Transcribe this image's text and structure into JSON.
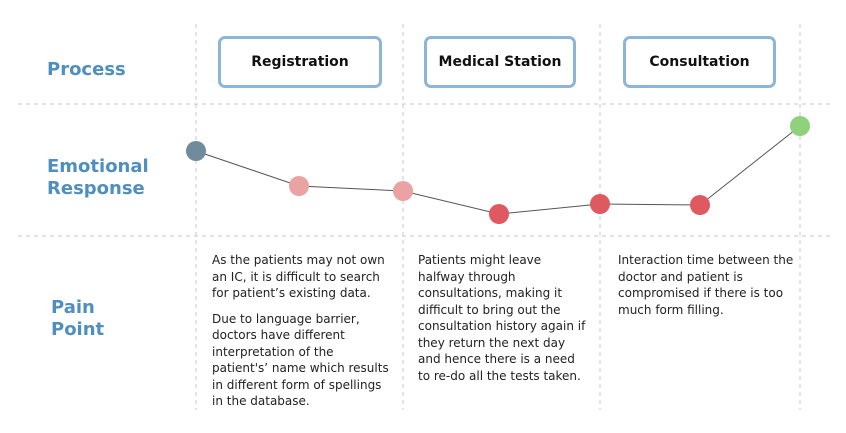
{
  "rows": {
    "process": "Process",
    "emotional_line1": "Emotional",
    "emotional_line2": "Response",
    "pain_line1": "Pain",
    "pain_line2": "Point"
  },
  "stages": [
    "Registration",
    "Medical Station",
    "Consultation"
  ],
  "emotion_points": [
    {
      "level": 0.8,
      "color": "#6f8b9c"
    },
    {
      "level": 0.52,
      "color": "#eba2a2"
    },
    {
      "level": 0.48,
      "color": "#eba2a2"
    },
    {
      "level": 0.3,
      "color": "#de5a60"
    },
    {
      "level": 0.38,
      "color": "#de5a60"
    },
    {
      "level": 0.37,
      "color": "#de5a60"
    },
    {
      "level": 1.0,
      "color": "#8fd17c"
    }
  ],
  "pain_points": {
    "registration_1": "As the patients may not own an IC, it is difficult to search for patient’s existing data.",
    "registration_2": "Due to language barrier, doctors have different interpretation of the patient's’ name which results in different form of spellings in the database.",
    "medical_station": "Patients might leave halfway through consultations, making it difficult to bring out the consultation history again if they return the next day and hence there is a need to re-do all the tests taken.",
    "consultation": "Interaction time between the doctor and patient is compromised if there is too much form filling."
  },
  "colors": {
    "label": "#4f8fc0",
    "box_border": "#8db5d8",
    "guide": "#c9c9c9",
    "journey_line": "#555555"
  }
}
